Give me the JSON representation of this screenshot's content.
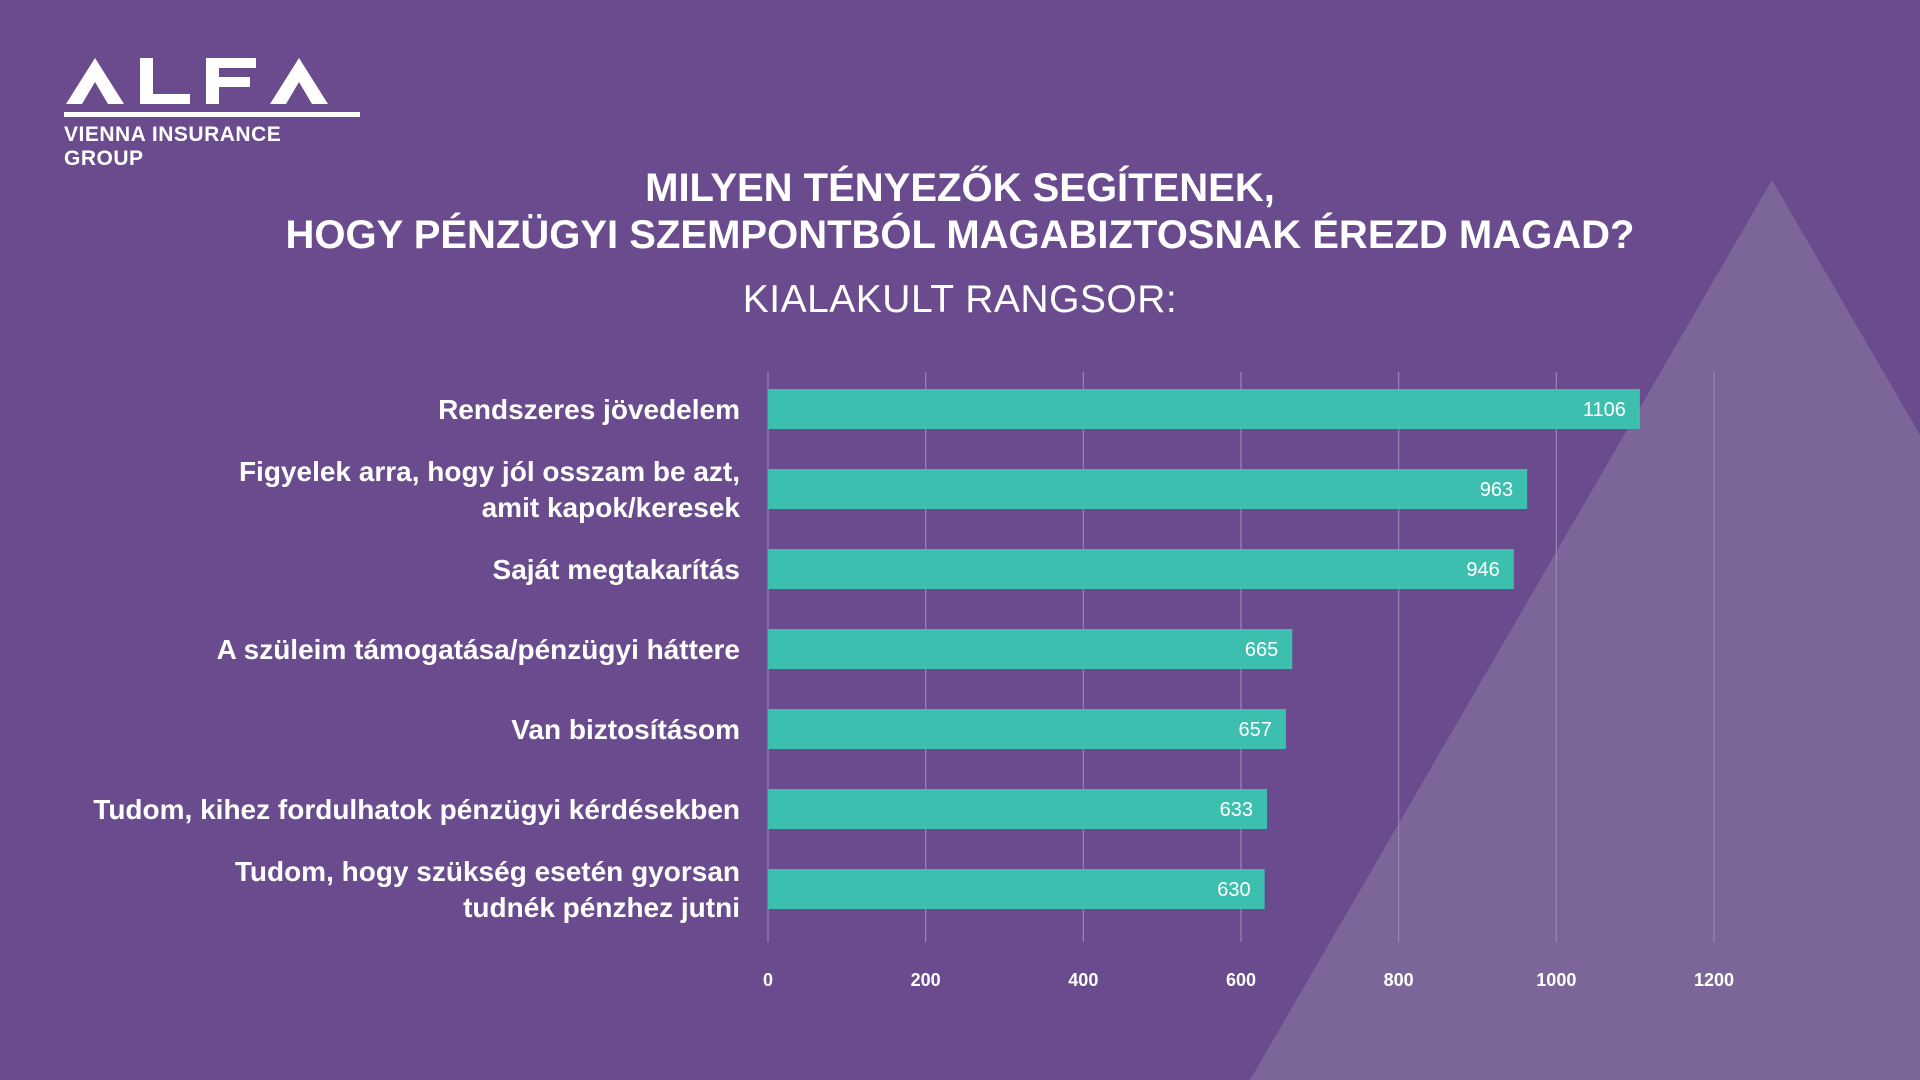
{
  "brand": {
    "logo_text": "ALFA",
    "logo_sub": "VIENNA INSURANCE GROUP"
  },
  "colors": {
    "background": "#6a4b8e",
    "bar": "#3dbfb0",
    "triangle": "#7c6699",
    "text": "#ffffff",
    "grid": "#9a86b4"
  },
  "chart_data": {
    "type": "bar",
    "orientation": "horizontal",
    "title_line1": "MILYEN TÉNYEZŐK SEGÍTENEK,",
    "title_line2": "HOGY PÉNZÜGYI SZEMPONTBÓL MAGABIZTOSNAK ÉREZD MAGAD?",
    "subtitle": "KIALAKULT RANGSOR:",
    "categories": [
      [
        "Rendszeres jövedelem"
      ],
      [
        "Figyelek arra, hogy jól osszam be azt,",
        "amit kapok/keresek"
      ],
      [
        "Saját megtakarítás"
      ],
      [
        "A szüleim támogatása/pénzügyi háttere"
      ],
      [
        "Van biztosításom"
      ],
      [
        "Tudom, kihez fordulhatok pénzügyi kérdésekben"
      ],
      [
        "Tudom, hogy szükség esetén gyorsan",
        "tudnék pénzhez jutni"
      ]
    ],
    "values": [
      1106,
      963,
      946,
      665,
      657,
      633,
      630
    ],
    "xlim": [
      0,
      1200
    ],
    "xticks": [
      0,
      200,
      400,
      600,
      800,
      1000,
      1200
    ],
    "grid": "vertical",
    "data_labels": "inside-end"
  }
}
